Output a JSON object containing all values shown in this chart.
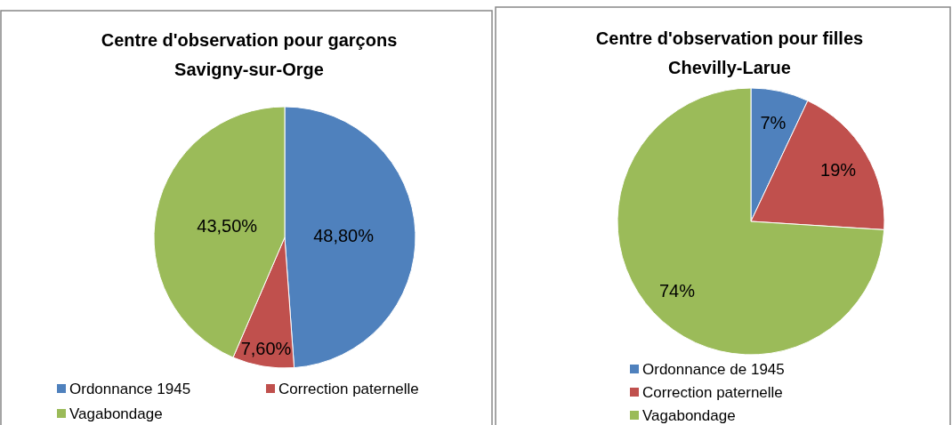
{
  "chart_data": [
    {
      "type": "pie",
      "title": "Centre d'observation pour garçons",
      "subtitle": "Savigny-sur-Orge",
      "categories": [
        "Ordonnance 1945",
        "Correction paternelle",
        "Vagabondage"
      ],
      "values": [
        48.8,
        7.6,
        43.5
      ],
      "colors": [
        "#4f81bd",
        "#c0504d",
        "#9bbb59"
      ],
      "value_labels": [
        "48,80%",
        "7,60%",
        "43,50%"
      ],
      "legend": "bottom"
    },
    {
      "type": "pie",
      "title": "Centre d'observation pour filles",
      "subtitle": "Chevilly-Larue",
      "categories": [
        "Ordonnance de 1945",
        "Correction paternelle",
        "Vagabondage"
      ],
      "values": [
        7,
        19,
        74
      ],
      "colors": [
        "#4f81bd",
        "#c0504d",
        "#9bbb59"
      ],
      "value_labels": [
        "7%",
        "19%",
        "74%"
      ],
      "legend": "bottom"
    }
  ]
}
